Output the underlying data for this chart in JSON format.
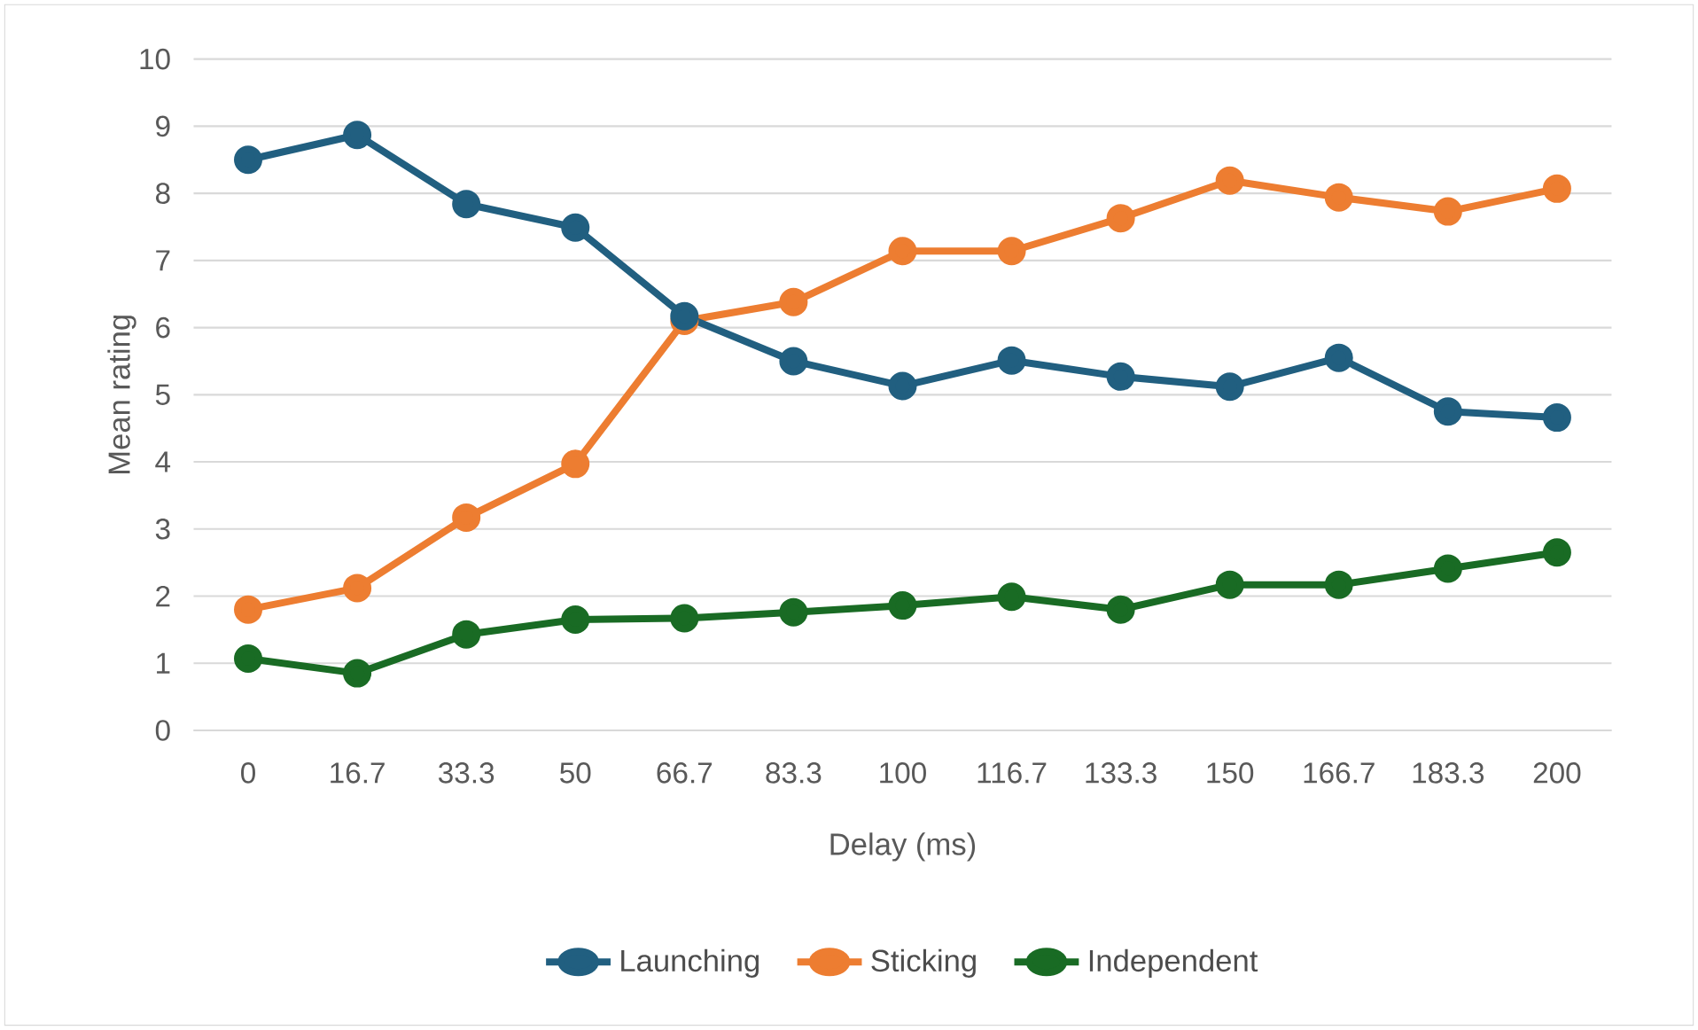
{
  "chart_data": {
    "type": "line",
    "xlabel": "Delay (ms)",
    "ylabel": "Mean rating",
    "categories": [
      "0",
      "16.7",
      "33.3",
      "50",
      "66.7",
      "83.3",
      "100",
      "116.7",
      "133.3",
      "150",
      "166.7",
      "183.3",
      "200"
    ],
    "series": [
      {
        "name": "Launching",
        "color": "#215f80",
        "values": [
          8.5,
          8.87,
          7.84,
          7.49,
          6.17,
          5.5,
          5.13,
          5.51,
          5.27,
          5.12,
          5.55,
          4.75,
          4.66
        ]
      },
      {
        "name": "Sticking",
        "color": "#ed7d31",
        "values": [
          1.8,
          2.12,
          3.17,
          3.97,
          6.1,
          6.38,
          7.14,
          7.14,
          7.63,
          8.19,
          7.94,
          7.73,
          8.07
        ]
      },
      {
        "name": "Independent",
        "color": "#196b24",
        "values": [
          1.07,
          0.85,
          1.43,
          1.65,
          1.67,
          1.76,
          1.86,
          1.99,
          1.8,
          2.17,
          2.17,
          2.41,
          2.65
        ]
      }
    ],
    "ylim": [
      0,
      10
    ],
    "yticks": [
      0,
      1,
      2,
      3,
      4,
      5,
      6,
      7,
      8,
      9,
      10
    ],
    "grid": "y",
    "legend": "bottom",
    "marker": "circle",
    "line_style": "solid"
  }
}
